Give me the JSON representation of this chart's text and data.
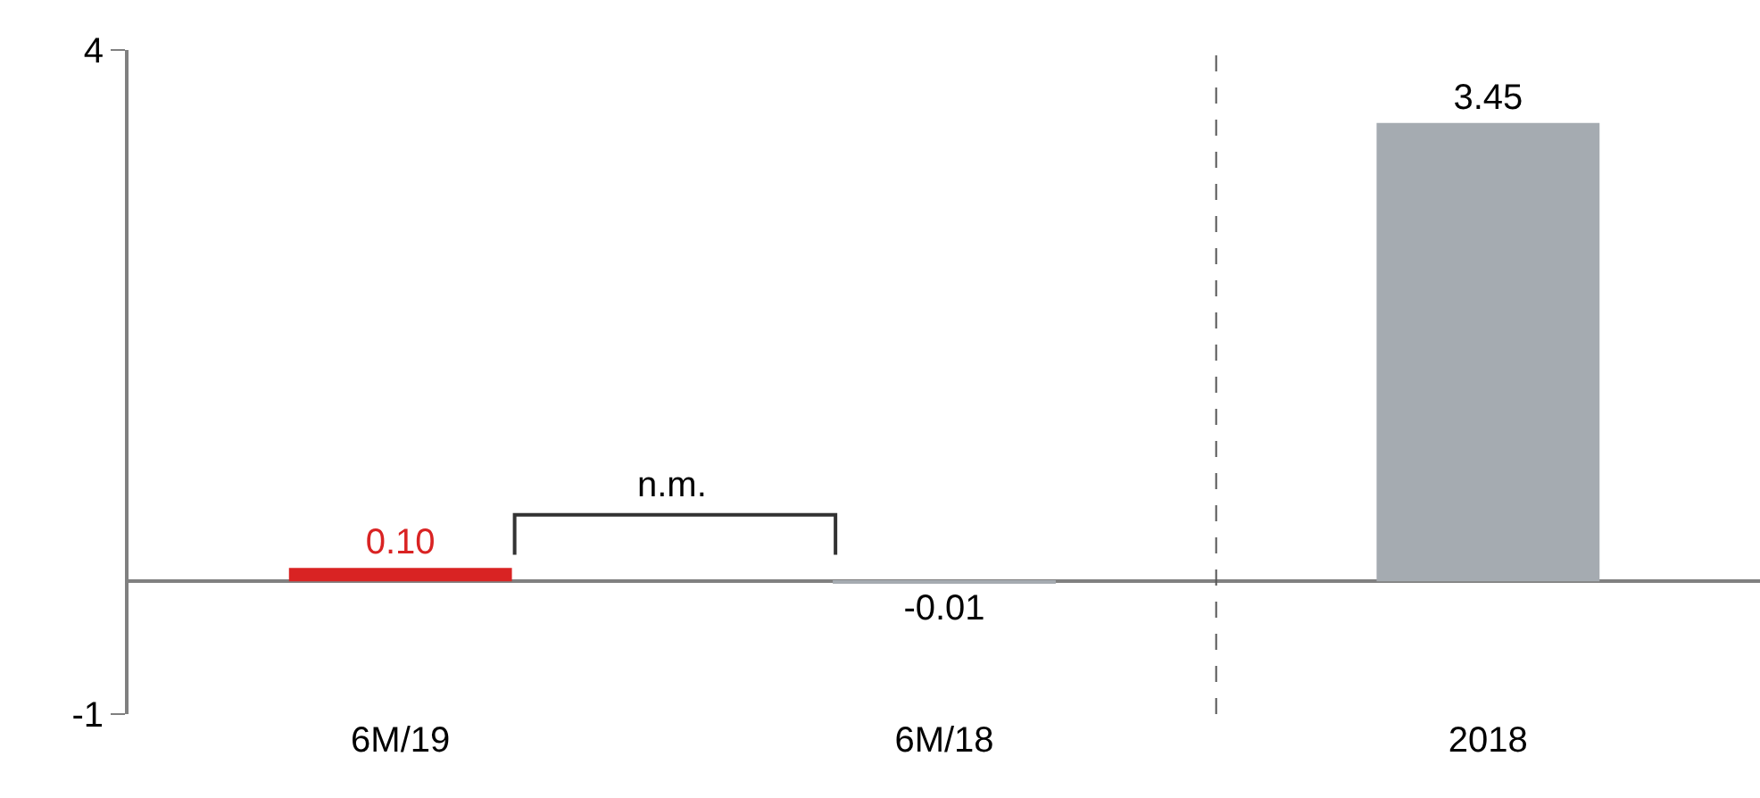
{
  "chart_data": {
    "type": "bar",
    "categories": [
      "6M/19",
      "6M/18",
      "2018"
    ],
    "values": [
      0.1,
      -0.01,
      3.45
    ],
    "value_labels": [
      "0.10",
      "-0.01",
      "3.45"
    ],
    "colors": [
      "#d92323",
      "#a5abb1",
      "#a5abb1"
    ],
    "ylim": [
      -1,
      4
    ],
    "yticks": [
      -1,
      4
    ],
    "annotations": [
      "n.m."
    ]
  }
}
